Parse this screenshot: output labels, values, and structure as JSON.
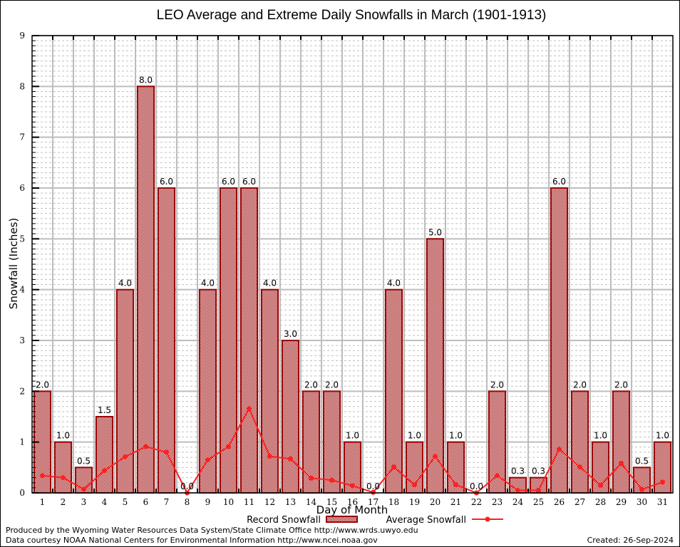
{
  "chart_data": {
    "type": "bar",
    "title": "LEO Average and Extreme Daily Snowfalls in March (1901-1913)",
    "xlabel": "Day of Month",
    "ylabel": "Snowfall (Inches)",
    "ylim": [
      0,
      9
    ],
    "yticks": [
      "0",
      "1",
      "2",
      "3",
      "4",
      "5",
      "6",
      "7",
      "8",
      "9"
    ],
    "grid": true,
    "categories": [
      "1",
      "2",
      "3",
      "4",
      "5",
      "6",
      "7",
      "8",
      "9",
      "10",
      "11",
      "12",
      "13",
      "14",
      "15",
      "16",
      "17",
      "18",
      "19",
      "20",
      "21",
      "22",
      "23",
      "24",
      "25",
      "26",
      "27",
      "28",
      "29",
      "30",
      "31"
    ],
    "series": [
      {
        "name": "Record Snowfall",
        "type": "bar",
        "color": "#990000",
        "values": [
          2.0,
          1.0,
          0.5,
          1.5,
          4.0,
          8.0,
          6.0,
          0.0,
          4.0,
          6.0,
          6.0,
          4.0,
          3.0,
          2.0,
          2.0,
          1.0,
          0.0,
          4.0,
          1.0,
          5.0,
          1.0,
          0.0,
          2.0,
          0.3,
          0.3,
          6.0,
          2.0,
          1.0,
          2.0,
          0.5,
          1.0
        ],
        "labels": [
          "2.0",
          "1.0",
          "0.5",
          "1.5",
          "4.0",
          "8.0",
          "6.0",
          "0.0",
          "4.0",
          "6.0",
          "6.0",
          "4.0",
          "3.0",
          "2.0",
          "2.0",
          "1.0",
          "0.0",
          "4.0",
          "1.0",
          "5.0",
          "1.0",
          "0.0",
          "2.0",
          "0.3",
          "0.3",
          "6.0",
          "2.0",
          "1.0",
          "2.0",
          "0.5",
          "1.0"
        ]
      },
      {
        "name": "Average Snowfall",
        "type": "line",
        "color": "#ff2020",
        "values": [
          0.34,
          0.3,
          0.07,
          0.44,
          0.71,
          0.91,
          0.8,
          0.0,
          0.65,
          0.91,
          1.66,
          0.72,
          0.67,
          0.29,
          0.25,
          0.14,
          0.01,
          0.51,
          0.16,
          0.72,
          0.16,
          0.0,
          0.34,
          0.05,
          0.05,
          0.86,
          0.51,
          0.15,
          0.58,
          0.07,
          0.21
        ]
      }
    ],
    "legend": {
      "placement": "bottom-center",
      "entries": [
        "Record Snowfall",
        "Average Snowfall"
      ]
    }
  },
  "footer": {
    "line1": "Produced by the Wyoming Water Resources Data System/State Climate Office http://www.wrds.uwyo.edu",
    "line2": "Data courtesy NOAA National Centers for Environmental Information http://www.ncei.noaa.gov",
    "created": "Created: 26-Sep-2024"
  }
}
